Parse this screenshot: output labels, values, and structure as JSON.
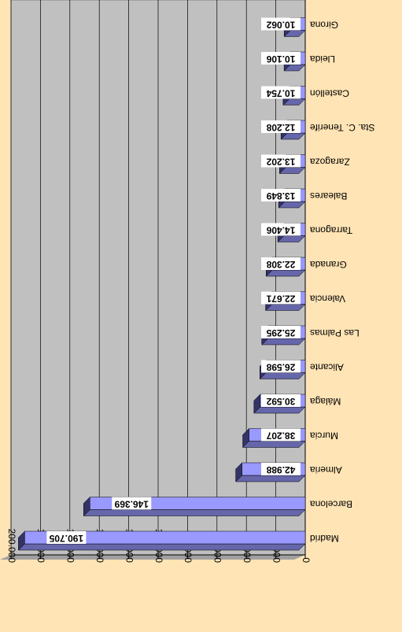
{
  "chart_data": {
    "type": "bar",
    "orientation": "horizontal",
    "categories": [
      "Madrid",
      "Barcelona",
      "Almeria",
      "Murcia",
      "Málaga",
      "Alicante",
      "Las Palmas",
      "Valencia",
      "Granada",
      "Tarragona",
      "Baleares",
      "Zaragoza",
      "Sta. C. Tenerife",
      "Castellón",
      "Lleida",
      "Girona"
    ],
    "values": [
      190705,
      146369,
      42988,
      38207,
      30592,
      26598,
      25295,
      22671,
      22308,
      14406,
      13849,
      13202,
      12208,
      10754,
      10106,
      10062
    ],
    "value_labels": [
      "190.705",
      "146.369",
      "42.988",
      "38.207",
      "30.592",
      "26.598",
      "25.295",
      "22.671",
      "22.308",
      "14.406",
      "13.849",
      "13.202",
      "12.208",
      "10.754",
      "10.106",
      "10.062"
    ],
    "color": "#9999ff",
    "xlim": [
      0,
      200000
    ],
    "xticks": [
      0,
      {
        "value": 20000,
        "label": "20.000"
      },
      {
        "value": 40000,
        "label": "40.000"
      },
      {
        "value": 60000,
        "label": "60.000"
      },
      {
        "value": 80000,
        "label": "80.000"
      },
      {
        "value": 100000,
        "label": "100.000"
      },
      {
        "value": 120000,
        "label": "120.000"
      },
      {
        "value": 140000,
        "label": "140.000"
      },
      {
        "value": 160000,
        "label": "160.000"
      },
      {
        "value": 180000,
        "label": "180.000"
      },
      {
        "value": 200000,
        "label": "200.000"
      }
    ],
    "grid": true,
    "rotation": 180
  }
}
